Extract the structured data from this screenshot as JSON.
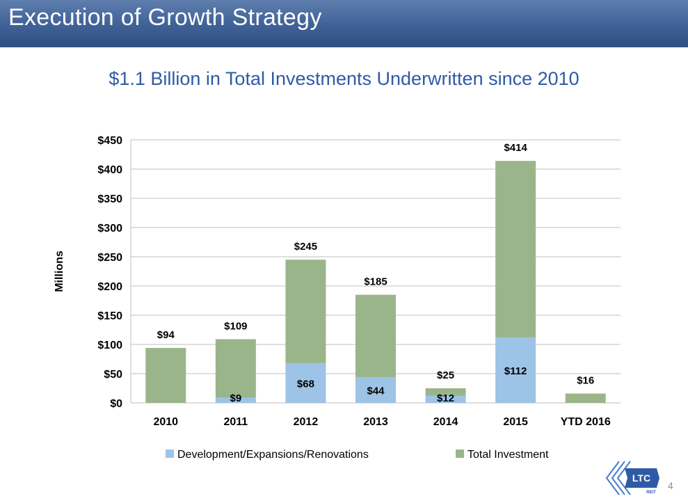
{
  "slide": {
    "title": "Execution of Growth Strategy",
    "subtitle": "$1.1 Billion in Total Investments Underwritten since 2010",
    "page_number": "4",
    "logo_text": "LTC",
    "logo_subtext": "REIT"
  },
  "colors": {
    "development": "#9dc3e6",
    "total": "#9bb58a",
    "subtitle": "#2f5aa6",
    "title_bar": "#44659a"
  },
  "chart_data": {
    "type": "bar",
    "stacked": true,
    "title": "",
    "xlabel": "",
    "ylabel": "Millions",
    "ylim": [
      0,
      450
    ],
    "yticks": [
      0,
      50,
      100,
      150,
      200,
      250,
      300,
      350,
      400,
      450
    ],
    "ytick_labels": [
      "$0",
      "$50",
      "$100",
      "$150",
      "$200",
      "$250",
      "$300",
      "$350",
      "$400",
      "$450"
    ],
    "grid": true,
    "legend": "bottom",
    "categories": [
      "2010",
      "2011",
      "2012",
      "2013",
      "2014",
      "2015",
      "YTD 2016"
    ],
    "series": [
      {
        "name": "Development/Expansions/Renovations",
        "color": "#9dc3e6",
        "values": [
          0,
          9,
          68,
          44,
          12,
          112,
          0
        ],
        "labels": [
          "",
          "$9",
          "$68",
          "$44",
          "$12",
          "$112",
          ""
        ]
      },
      {
        "name": "Total Investment",
        "color": "#9bb58a",
        "values": [
          94,
          100,
          177,
          141,
          13,
          302,
          16
        ]
      }
    ],
    "totals": [
      94,
      109,
      245,
      185,
      25,
      414,
      16
    ],
    "total_labels": [
      "$94",
      "$109",
      "$245",
      "$185",
      "$25",
      "$414",
      "$16"
    ]
  }
}
